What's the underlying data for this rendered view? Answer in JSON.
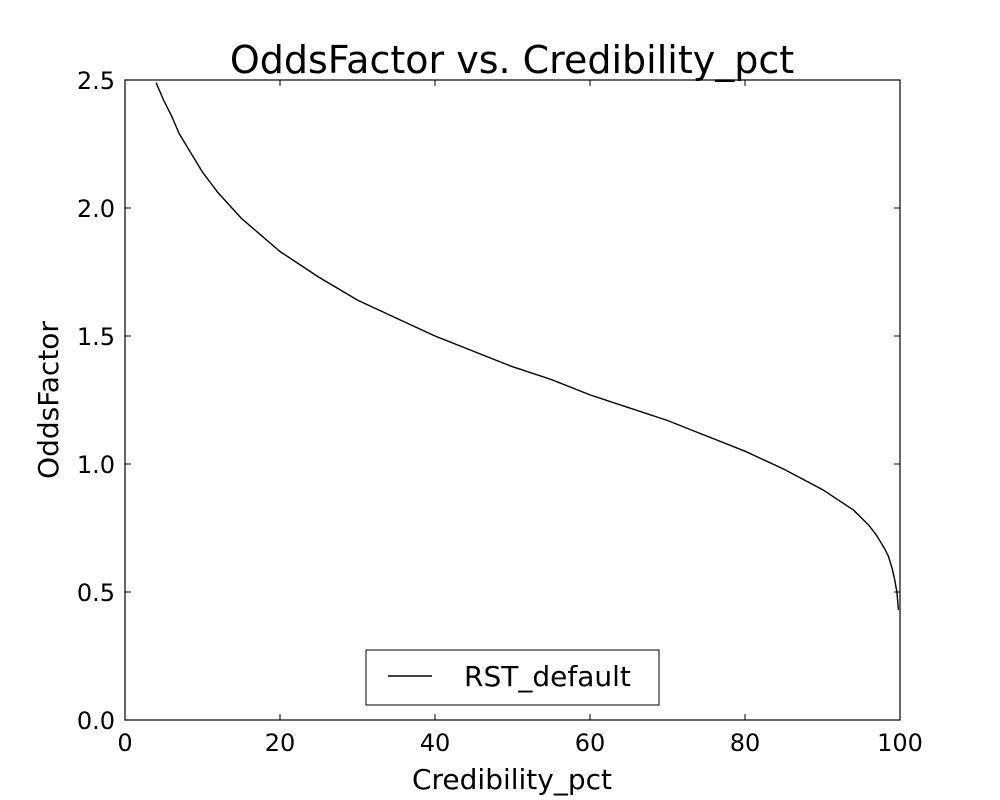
{
  "chart_data": {
    "type": "line",
    "title": "OddsFactor vs. Credibility_pct",
    "xlabel": "Credibility_pct",
    "ylabel": "OddsFactor",
    "xlim": [
      0,
      100
    ],
    "ylim": [
      0,
      2.5
    ],
    "xticks": [
      "0",
      "20",
      "40",
      "60",
      "80",
      "100"
    ],
    "yticks": [
      "0.0",
      "0.5",
      "1.0",
      "1.5",
      "2.0",
      "2.5"
    ],
    "grid": false,
    "legend_position": "lower-center",
    "series": [
      {
        "name": "RST_default",
        "color": "#000000",
        "x": [
          4,
          5,
          6,
          7,
          8,
          9,
          10,
          12,
          15,
          20,
          25,
          30,
          35,
          40,
          45,
          50,
          55,
          60,
          65,
          70,
          75,
          80,
          85,
          90,
          92,
          94,
          95,
          96,
          97,
          98,
          98.5,
          99,
          99.3,
          99.6,
          99.8
        ],
        "y": [
          2.49,
          2.42,
          2.36,
          2.29,
          2.24,
          2.19,
          2.14,
          2.06,
          1.96,
          1.83,
          1.73,
          1.64,
          1.57,
          1.5,
          1.44,
          1.38,
          1.33,
          1.27,
          1.22,
          1.17,
          1.11,
          1.05,
          0.98,
          0.9,
          0.86,
          0.82,
          0.79,
          0.76,
          0.72,
          0.67,
          0.64,
          0.59,
          0.55,
          0.5,
          0.43
        ]
      }
    ]
  }
}
